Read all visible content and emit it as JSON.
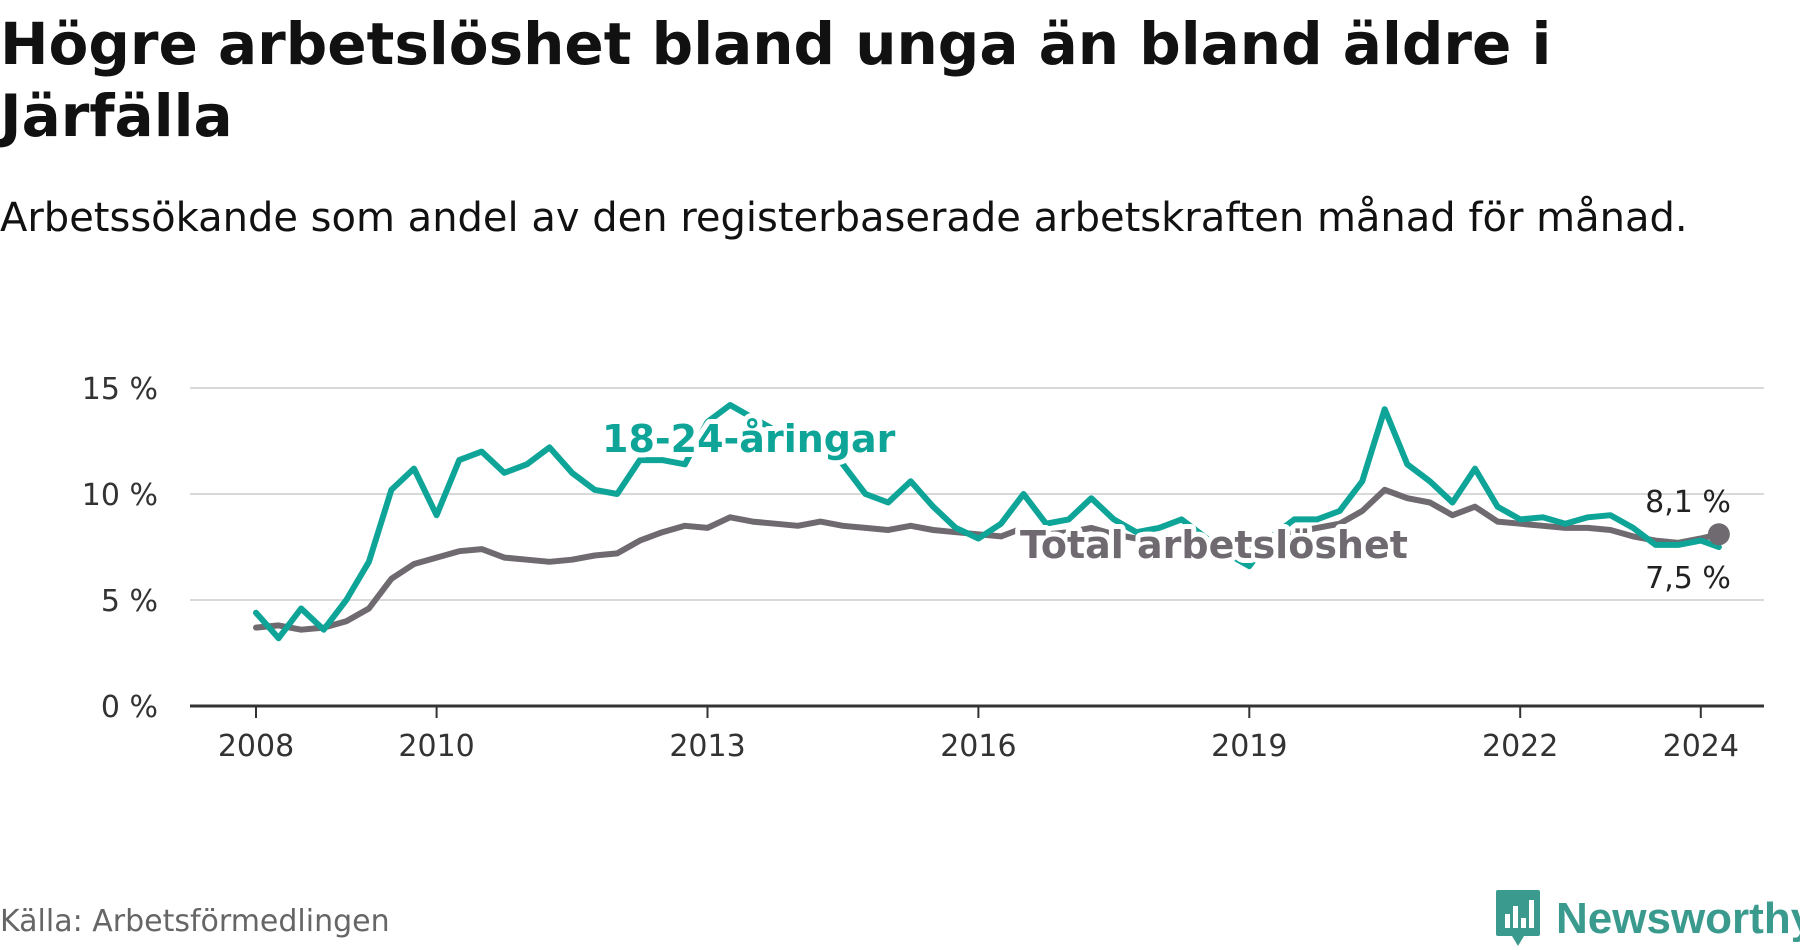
{
  "title": "Högre arbetslöshet bland unga än bland äldre i Järfälla",
  "subtitle": "Arbetssökande som andel av den registerbaserade arbetskraften månad för månad.",
  "source": "Källa: Arbetsförmedlingen",
  "brand": "Newsworthy",
  "colors": {
    "youth": "#0ea598",
    "total": "#6f6a6f",
    "grid": "#d9d9d9",
    "axis": "#333333",
    "brand": "#3a9a8e"
  },
  "chart_data": {
    "type": "line",
    "title": "Högre arbetslöshet bland unga än bland äldre i Järfälla",
    "xlabel": "",
    "ylabel": "",
    "xlim": [
      2008,
      2024.7
    ],
    "ylim": [
      0,
      15
    ],
    "y_ticks": [
      0,
      5,
      10,
      15
    ],
    "y_tick_labels": [
      "0 %",
      "5 %",
      "10 %",
      "15 %"
    ],
    "x_ticks": [
      2008,
      2010,
      2013,
      2016,
      2019,
      2022,
      2024
    ],
    "x_tick_labels": [
      "2008",
      "2010",
      "2013",
      "2016",
      "2019",
      "2022",
      "2024"
    ],
    "grid": true,
    "series": [
      {
        "name": "18-24-åringar",
        "label": "18-24-åringar",
        "end_label": "7,5 %",
        "x": [
          2008.0,
          2008.25,
          2008.5,
          2008.75,
          2009.0,
          2009.25,
          2009.5,
          2009.75,
          2010.0,
          2010.25,
          2010.5,
          2010.75,
          2011.0,
          2011.25,
          2011.5,
          2011.75,
          2012.0,
          2012.25,
          2012.5,
          2012.75,
          2013.0,
          2013.25,
          2013.5,
          2013.75,
          2014.0,
          2014.25,
          2014.5,
          2014.75,
          2015.0,
          2015.25,
          2015.5,
          2015.75,
          2016.0,
          2016.25,
          2016.5,
          2016.75,
          2017.0,
          2017.25,
          2017.5,
          2017.75,
          2018.0,
          2018.25,
          2018.5,
          2018.75,
          2019.0,
          2019.25,
          2019.5,
          2019.75,
          2020.0,
          2020.25,
          2020.5,
          2020.75,
          2021.0,
          2021.25,
          2021.5,
          2021.75,
          2022.0,
          2022.25,
          2022.5,
          2022.75,
          2023.0,
          2023.25,
          2023.5,
          2023.75,
          2024.0,
          2024.2
        ],
        "values": [
          4.4,
          3.2,
          4.6,
          3.6,
          5.0,
          6.8,
          10.2,
          11.2,
          9.0,
          11.6,
          12.0,
          11.0,
          11.4,
          12.2,
          11.0,
          10.2,
          10.0,
          11.6,
          11.6,
          11.4,
          13.4,
          14.2,
          13.6,
          13.0,
          12.8,
          12.6,
          11.4,
          10.0,
          9.6,
          10.6,
          9.4,
          8.4,
          7.9,
          8.6,
          10.0,
          8.6,
          8.8,
          9.8,
          8.8,
          8.2,
          8.4,
          8.8,
          8.0,
          7.2,
          6.6,
          8.0,
          8.8,
          8.8,
          9.2,
          10.6,
          14.0,
          11.4,
          10.6,
          9.6,
          11.2,
          9.4,
          8.8,
          8.9,
          8.6,
          8.9,
          9.0,
          8.4,
          7.6,
          7.6,
          7.8,
          7.5
        ]
      },
      {
        "name": "Total arbetslöshet",
        "label": "Total arbetslöshet",
        "end_label": "8,1 %",
        "x": [
          2008.0,
          2008.25,
          2008.5,
          2008.75,
          2009.0,
          2009.25,
          2009.5,
          2009.75,
          2010.0,
          2010.25,
          2010.5,
          2010.75,
          2011.0,
          2011.25,
          2011.5,
          2011.75,
          2012.0,
          2012.25,
          2012.5,
          2012.75,
          2013.0,
          2013.25,
          2013.5,
          2013.75,
          2014.0,
          2014.25,
          2014.5,
          2014.75,
          2015.0,
          2015.25,
          2015.5,
          2015.75,
          2016.0,
          2016.25,
          2016.5,
          2016.75,
          2017.0,
          2017.25,
          2017.5,
          2017.75,
          2018.0,
          2018.25,
          2018.5,
          2018.75,
          2019.0,
          2019.25,
          2019.5,
          2019.75,
          2020.0,
          2020.25,
          2020.5,
          2020.75,
          2021.0,
          2021.25,
          2021.5,
          2021.75,
          2022.0,
          2022.25,
          2022.5,
          2022.75,
          2023.0,
          2023.25,
          2023.5,
          2023.75,
          2024.0,
          2024.2
        ],
        "values": [
          3.7,
          3.8,
          3.6,
          3.7,
          4.0,
          4.6,
          6.0,
          6.7,
          7.0,
          7.3,
          7.4,
          7.0,
          6.9,
          6.8,
          6.9,
          7.1,
          7.2,
          7.8,
          8.2,
          8.5,
          8.4,
          8.9,
          8.7,
          8.6,
          8.5,
          8.7,
          8.5,
          8.4,
          8.3,
          8.5,
          8.3,
          8.2,
          8.1,
          8.0,
          8.4,
          8.1,
          8.2,
          8.4,
          8.1,
          7.9,
          7.8,
          7.9,
          7.7,
          7.5,
          7.4,
          7.8,
          8.2,
          8.4,
          8.6,
          9.2,
          10.2,
          9.8,
          9.6,
          9.0,
          9.4,
          8.7,
          8.6,
          8.5,
          8.4,
          8.4,
          8.3,
          8.0,
          7.8,
          7.7,
          7.9,
          8.1
        ]
      }
    ]
  }
}
